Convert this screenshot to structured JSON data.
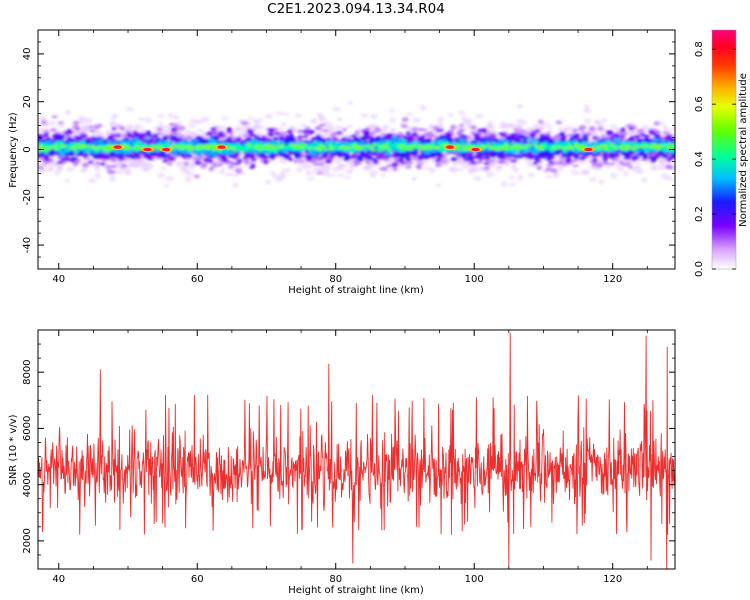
{
  "figure": {
    "title": "C2E1.2023.094.13.34.R04"
  },
  "chart_data": [
    {
      "type": "heatmap",
      "title": "C2E1.2023.094.13.34.R04",
      "xlabel": "Height of straight line (km)",
      "ylabel": "Frequency (Hz)",
      "xlim": [
        37,
        129
      ],
      "ylim": [
        -50,
        50
      ],
      "xticks": [
        40,
        60,
        80,
        100,
        120
      ],
      "yticks": [
        -40,
        -20,
        0,
        20,
        40
      ],
      "band_center_hz": 1,
      "band_halfwidth_hz": 8,
      "colorbar": {
        "label": "Normalized spectral amplitude",
        "range": [
          0.0,
          0.87
        ],
        "ticks": [
          0.0,
          0.2,
          0.4,
          0.6,
          0.8
        ],
        "colormap": "rainbow-white"
      },
      "hotspots": [
        {
          "x": 48.5,
          "y": 1
        },
        {
          "x": 52.8,
          "y": 0
        },
        {
          "x": 55.5,
          "y": 0
        },
        {
          "x": 63.5,
          "y": 1
        },
        {
          "x": 96.5,
          "y": 1
        },
        {
          "x": 100.2,
          "y": 0
        },
        {
          "x": 116.5,
          "y": 0
        }
      ]
    },
    {
      "type": "line",
      "xlabel": "Height of straight line (km)",
      "ylabel": "SNR (10 * v/v)",
      "xlim": [
        37,
        129
      ],
      "ylim": [
        1000,
        9500
      ],
      "xticks": [
        40,
        60,
        80,
        100,
        120
      ],
      "yticks": [
        2000,
        4000,
        6000,
        8000
      ],
      "series": [
        {
          "color": "#ee2e2e",
          "typical_range": [
            2500,
            7200
          ],
          "mean": 4500,
          "peaks": [
            {
              "x": 105.2,
              "y": 9400
            },
            {
              "x": 124.8,
              "y": 9300
            },
            {
              "x": 79.0,
              "y": 8300
            },
            {
              "x": 46.0,
              "y": 8100
            },
            {
              "x": 127.9,
              "y": 8900
            }
          ],
          "troughs": [
            {
              "x": 82.5,
              "y": 1200
            },
            {
              "x": 105.0,
              "y": 1100
            },
            {
              "x": 127.8,
              "y": 950
            },
            {
              "x": 125.5,
              "y": 1300
            }
          ]
        }
      ]
    }
  ]
}
